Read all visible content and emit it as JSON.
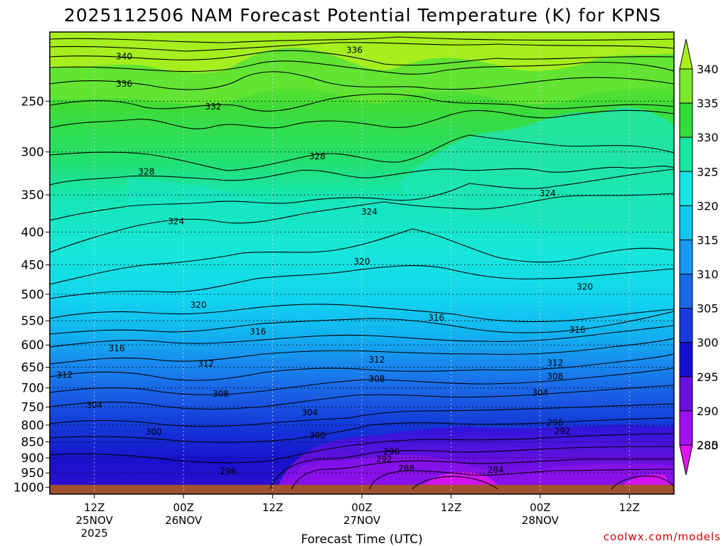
{
  "chart_data": {
    "type": "heatmap",
    "title": "2025112506 NAM Forecast Potential Temperature (K) for KPNS",
    "xlabel": "Forecast Time (UTC)",
    "ylabel": "",
    "credit": "coolwx.com/models",
    "y_pressure_ticks": [
      250,
      300,
      350,
      400,
      450,
      500,
      550,
      600,
      650,
      700,
      750,
      800,
      850,
      900,
      950,
      1000
    ],
    "y_tick_labels": [
      "250",
      "300",
      "350",
      "400",
      "450",
      "500",
      "550",
      "600",
      "650",
      "700",
      "750",
      "800",
      "850",
      "900",
      "950",
      "1000"
    ],
    "x_ticks": [
      {
        "hour": 6,
        "line1": "12Z",
        "line2": "25NOV",
        "line3": "2025"
      },
      {
        "hour": 18,
        "line1": "00Z",
        "line2": "26NOV",
        "line3": ""
      },
      {
        "hour": 30,
        "line1": "12Z",
        "line2": "",
        "line3": ""
      },
      {
        "hour": 42,
        "line1": "00Z",
        "line2": "27NOV",
        "line3": ""
      },
      {
        "hour": 54,
        "line1": "12Z",
        "line2": "",
        "line3": ""
      },
      {
        "hour": 66,
        "line1": "00Z",
        "line2": "28NOV",
        "line3": ""
      },
      {
        "hour": 78,
        "line1": "12Z",
        "line2": "",
        "line3": ""
      }
    ],
    "x_range_hours": [
      0,
      84
    ],
    "colorbar": {
      "levels": [
        340,
        335,
        330,
        325,
        320,
        315,
        310,
        305,
        300,
        295,
        290,
        285,
        280
      ],
      "labels": [
        "340",
        "335",
        "330",
        "325",
        "320",
        "315",
        "310",
        "305",
        "300",
        "295",
        "290",
        "285",
        "280"
      ],
      "colors": [
        "#a8f01e",
        "#7ce82c",
        "#34dc3a",
        "#18e8a0",
        "#16e6e6",
        "#10c8f0",
        "#1898f0",
        "#1a6ae6",
        "#1a3ae0",
        "#1410d0",
        "#6a10e0",
        "#a012f0",
        "#e016f0"
      ]
    },
    "contour_levels_labeled": [
      {
        "value": "340",
        "hour": 10,
        "pressure": 213
      },
      {
        "value": "336",
        "hour": 10,
        "pressure": 235
      },
      {
        "value": "336",
        "hour": 41,
        "pressure": 208
      },
      {
        "value": "332",
        "hour": 22,
        "pressure": 255
      },
      {
        "value": "328",
        "hour": 13,
        "pressure": 322
      },
      {
        "value": "328",
        "hour": 36,
        "pressure": 305
      },
      {
        "value": "324",
        "hour": 17,
        "pressure": 385
      },
      {
        "value": "324",
        "hour": 43,
        "pressure": 372
      },
      {
        "value": "324",
        "hour": 67,
        "pressure": 348
      },
      {
        "value": "320",
        "hour": 42,
        "pressure": 445
      },
      {
        "value": "320",
        "hour": 20,
        "pressure": 520
      },
      {
        "value": "320",
        "hour": 72,
        "pressure": 487
      },
      {
        "value": "316",
        "hour": 52,
        "pressure": 544
      },
      {
        "value": "316",
        "hour": 28,
        "pressure": 572
      },
      {
        "value": "316",
        "hour": 9,
        "pressure": 607
      },
      {
        "value": "316",
        "hour": 71,
        "pressure": 568
      },
      {
        "value": "312",
        "hour": 44,
        "pressure": 633
      },
      {
        "value": "312",
        "hour": 21,
        "pressure": 642
      },
      {
        "value": "312",
        "hour": 2,
        "pressure": 668
      },
      {
        "value": "312",
        "hour": 68,
        "pressure": 640
      },
      {
        "value": "308",
        "hour": 44,
        "pressure": 678
      },
      {
        "value": "308",
        "hour": 23,
        "pressure": 715
      },
      {
        "value": "308",
        "hour": 68,
        "pressure": 672
      },
      {
        "value": "304",
        "hour": 6,
        "pressure": 745
      },
      {
        "value": "304",
        "hour": 35,
        "pressure": 765
      },
      {
        "value": "304",
        "hour": 66,
        "pressure": 712
      },
      {
        "value": "300",
        "hour": 14,
        "pressure": 820
      },
      {
        "value": "300",
        "hour": 36,
        "pressure": 830
      },
      {
        "value": "296",
        "hour": 68,
        "pressure": 793
      },
      {
        "value": "296",
        "hour": 46,
        "pressure": 880
      },
      {
        "value": "296",
        "hour": 24,
        "pressure": 945
      },
      {
        "value": "292",
        "hour": 69,
        "pressure": 818
      },
      {
        "value": "292",
        "hour": 45,
        "pressure": 905
      },
      {
        "value": "288",
        "hour": 48,
        "pressure": 935
      },
      {
        "value": "284",
        "hour": 60,
        "pressure": 940
      }
    ]
  }
}
